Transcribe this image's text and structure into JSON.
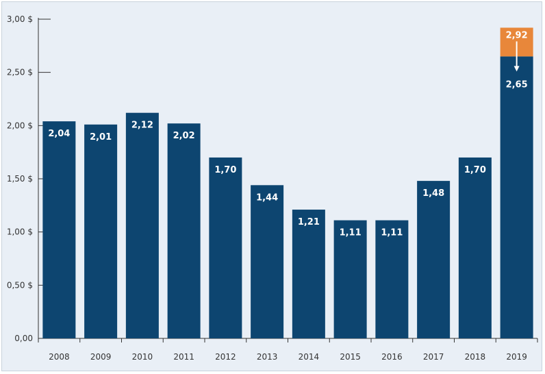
{
  "chart_data": {
    "type": "bar",
    "categories": [
      "2008",
      "2009",
      "2010",
      "2011",
      "2012",
      "2013",
      "2014",
      "2015",
      "2016",
      "2017",
      "2018",
      "2019"
    ],
    "values": [
      2.04,
      2.01,
      2.12,
      2.02,
      1.7,
      1.44,
      1.21,
      1.11,
      1.11,
      1.48,
      1.7,
      2.65
    ],
    "value_labels": [
      "2,04",
      "2,01",
      "2,12",
      "2,02",
      "1,70",
      "1,44",
      "1,21",
      "1,11",
      "1,11",
      "1,48",
      "1,70",
      "2,65"
    ],
    "extra_segment": {
      "category": "2019",
      "from": 2.65,
      "to": 2.92,
      "label": "2,92",
      "color": "#e8873a"
    },
    "y_ticks": [
      0,
      0.5,
      1.0,
      1.5,
      2.0,
      2.5,
      3.0
    ],
    "y_tick_labels": [
      "0,00",
      "0,50 $",
      "1,00 $",
      "1,50 $",
      "2,00 $",
      "2,50 $",
      "3,00 $"
    ],
    "ylim": [
      0,
      3.0
    ],
    "title": "",
    "xlabel": "",
    "ylabel": "",
    "grid": false,
    "colors": {
      "bar": "#0d4570",
      "background": "#e9eff6",
      "axis": "#333333"
    }
  }
}
